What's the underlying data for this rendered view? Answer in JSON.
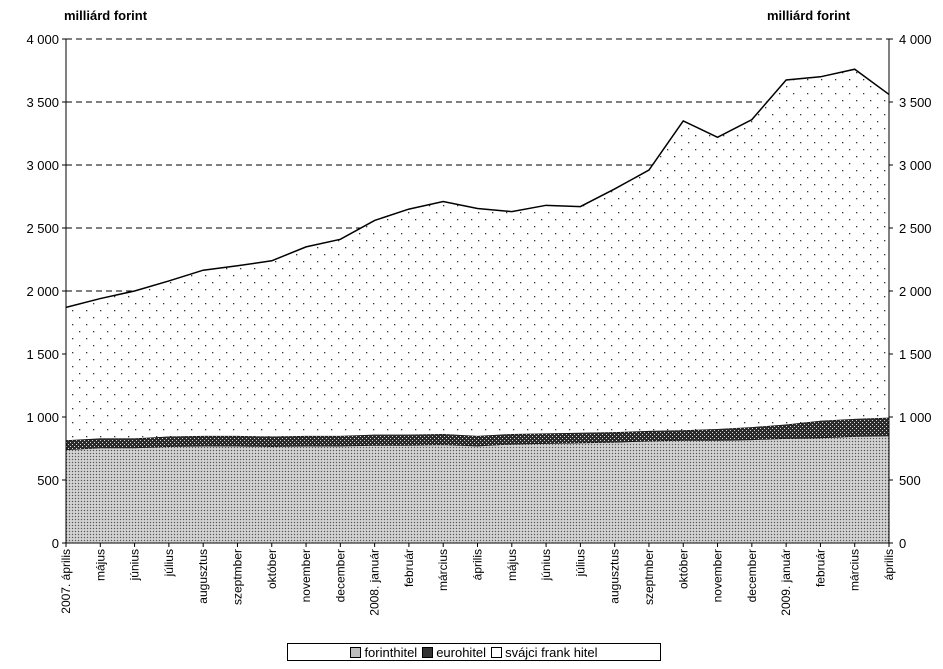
{
  "chart_data": {
    "type": "area",
    "stacked": true,
    "left_unit_label": "milliárd forint",
    "right_unit_label": "milliárd forint",
    "ylim": [
      0,
      4000
    ],
    "yticks": [
      0,
      500,
      1000,
      1500,
      2000,
      2500,
      3000,
      3500,
      4000
    ],
    "ytick_labels": [
      "0",
      "500",
      "1 000",
      "1 500",
      "2 000",
      "2 500",
      "3 000",
      "3 500",
      "4 000"
    ],
    "categories": [
      "2007. április",
      "május",
      "június",
      "július",
      "augusztus",
      "szeptmber",
      "október",
      "november",
      "december",
      "2008. január",
      "február",
      "március",
      "április",
      "május",
      "június",
      "július",
      "augusztus",
      "szeptmber",
      "október",
      "november",
      "december",
      "2009. január",
      "február",
      "március",
      "április"
    ],
    "series": [
      {
        "name": "forinthitel",
        "color": "#bdbdbd",
        "values": [
          740,
          755,
          755,
          765,
          770,
          770,
          765,
          770,
          770,
          775,
          775,
          780,
          770,
          785,
          790,
          795,
          800,
          810,
          815,
          815,
          820,
          830,
          835,
          845,
          850
        ]
      },
      {
        "name": "eurohitel",
        "color": "#4a4a4a",
        "values": [
          75,
          75,
          75,
          80,
          80,
          80,
          80,
          80,
          80,
          85,
          85,
          85,
          80,
          80,
          80,
          80,
          80,
          80,
          80,
          90,
          100,
          110,
          135,
          140,
          145
        ]
      },
      {
        "name": "svájci frank hitel",
        "color": "#ffffff",
        "values": [
          1055,
          1110,
          1170,
          1235,
          1315,
          1350,
          1395,
          1500,
          1560,
          1700,
          1790,
          1845,
          1805,
          1765,
          1810,
          1795,
          1930,
          2070,
          2455,
          2315,
          2440,
          2735,
          2730,
          2775,
          2565
        ]
      }
    ],
    "grid": "horizontal dashed",
    "legend_position": "bottom"
  }
}
